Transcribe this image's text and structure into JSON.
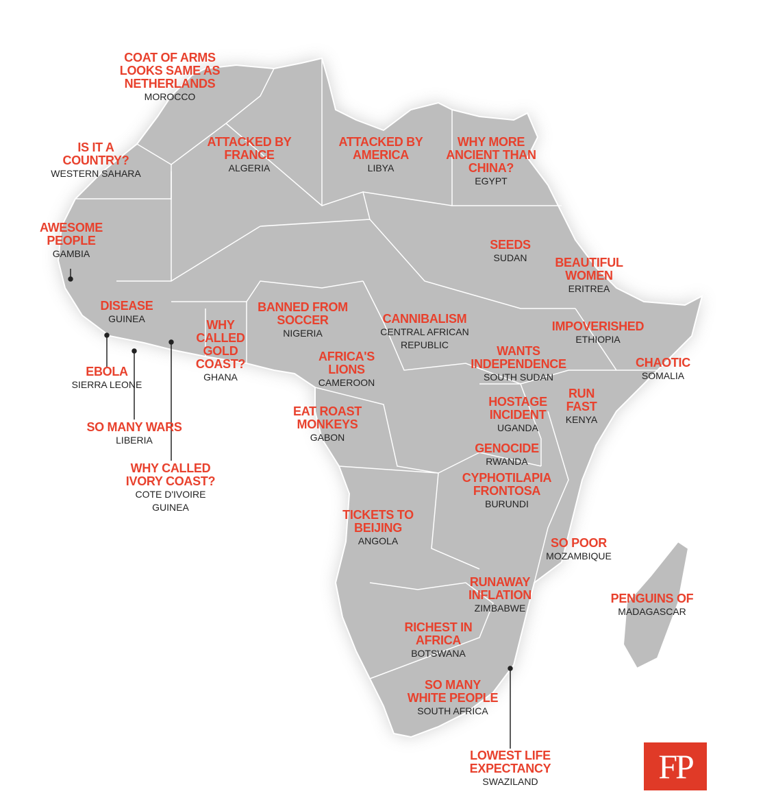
{
  "labels": [
    {
      "caption": [
        "COAT OF ARMS",
        "LOOKS SAME AS",
        "NETHERLANDS"
      ],
      "country": [
        "MOROCCO"
      ]
    },
    {
      "caption": [
        "IS IT A",
        "COUNTRY?"
      ],
      "country": [
        "WESTERN SAHARA"
      ]
    },
    {
      "caption": [
        "ATTACKED BY",
        "FRANCE"
      ],
      "country": [
        "ALGERIA"
      ]
    },
    {
      "caption": [
        "ATTACKED BY",
        "AMERICA"
      ],
      "country": [
        "LIBYA"
      ]
    },
    {
      "caption": [
        "WHY MORE",
        "ANCIENT THAN",
        "CHINA?"
      ],
      "country": [
        "EGYPT"
      ]
    },
    {
      "caption": [
        "AWESOME",
        "PEOPLE"
      ],
      "country": [
        "GAMBIA"
      ]
    },
    {
      "caption": [
        "SEEDS"
      ],
      "country": [
        "SUDAN"
      ]
    },
    {
      "caption": [
        "BEAUTIFUL",
        "WOMEN"
      ],
      "country": [
        "ERITREA"
      ]
    },
    {
      "caption": [
        "DISEASE"
      ],
      "country": [
        "GUINEA"
      ]
    },
    {
      "caption": [
        "BANNED FROM",
        "SOCCER"
      ],
      "country": [
        "NIGERIA"
      ]
    },
    {
      "caption": [
        "CANNIBALISM"
      ],
      "country": [
        "CENTRAL AFRICAN",
        "REPUBLIC"
      ]
    },
    {
      "caption": [
        "WHY",
        "CALLED",
        "GOLD",
        "COAST?"
      ],
      "country": [
        "GHANA"
      ]
    },
    {
      "caption": [
        "IMPOVERISHED"
      ],
      "country": [
        "ETHIOPIA"
      ]
    },
    {
      "caption": [
        "AFRICA'S",
        "LIONS"
      ],
      "country": [
        "CAMEROON"
      ]
    },
    {
      "caption": [
        "WANTS",
        "INDEPENDENCE"
      ],
      "country": [
        "SOUTH SUDAN"
      ]
    },
    {
      "caption": [
        "CHAOTIC"
      ],
      "country": [
        "SOMALIA"
      ]
    },
    {
      "caption": [
        "EBOLA"
      ],
      "country": [
        "SIERRA LEONE"
      ]
    },
    {
      "caption": [
        "RUN",
        "FAST"
      ],
      "country": [
        "KENYA"
      ]
    },
    {
      "caption": [
        "HOSTAGE",
        "INCIDENT"
      ],
      "country": [
        "UGANDA"
      ]
    },
    {
      "caption": [
        "EAT ROAST",
        "MONKEYS"
      ],
      "country": [
        "GABON"
      ]
    },
    {
      "caption": [
        "SO MANY WARS"
      ],
      "country": [
        "LIBERIA"
      ]
    },
    {
      "caption": [
        "GENOCIDE"
      ],
      "country": [
        "RWANDA"
      ]
    },
    {
      "caption": [
        "WHY CALLED",
        "IVORY COAST?"
      ],
      "country": [
        "COTE D'IVOIRE",
        "GUINEA"
      ]
    },
    {
      "caption": [
        "CYPHOTILAPIA",
        "FRONTOSA"
      ],
      "country": [
        "BURUNDI"
      ]
    },
    {
      "caption": [
        "TICKETS TO",
        "BEIJING"
      ],
      "country": [
        "ANGOLA"
      ]
    },
    {
      "caption": [
        "SO POOR"
      ],
      "country": [
        "MOZAMBIQUE"
      ]
    },
    {
      "caption": [
        "RUNAWAY",
        "INFLATION"
      ],
      "country": [
        "ZIMBABWE"
      ]
    },
    {
      "caption": [
        "PENGUINS OF"
      ],
      "country": [
        "MADAGASCAR"
      ]
    },
    {
      "caption": [
        "RICHEST IN",
        "AFRICA"
      ],
      "country": [
        "BOTSWANA"
      ]
    },
    {
      "caption": [
        "SO MANY",
        "WHITE PEOPLE"
      ],
      "country": [
        "SOUTH AFRICA"
      ]
    },
    {
      "caption": [
        "LOWEST LIFE",
        "EXPECTANCY"
      ],
      "country": [
        "SWAZILAND"
      ]
    }
  ],
  "logo": "FP"
}
